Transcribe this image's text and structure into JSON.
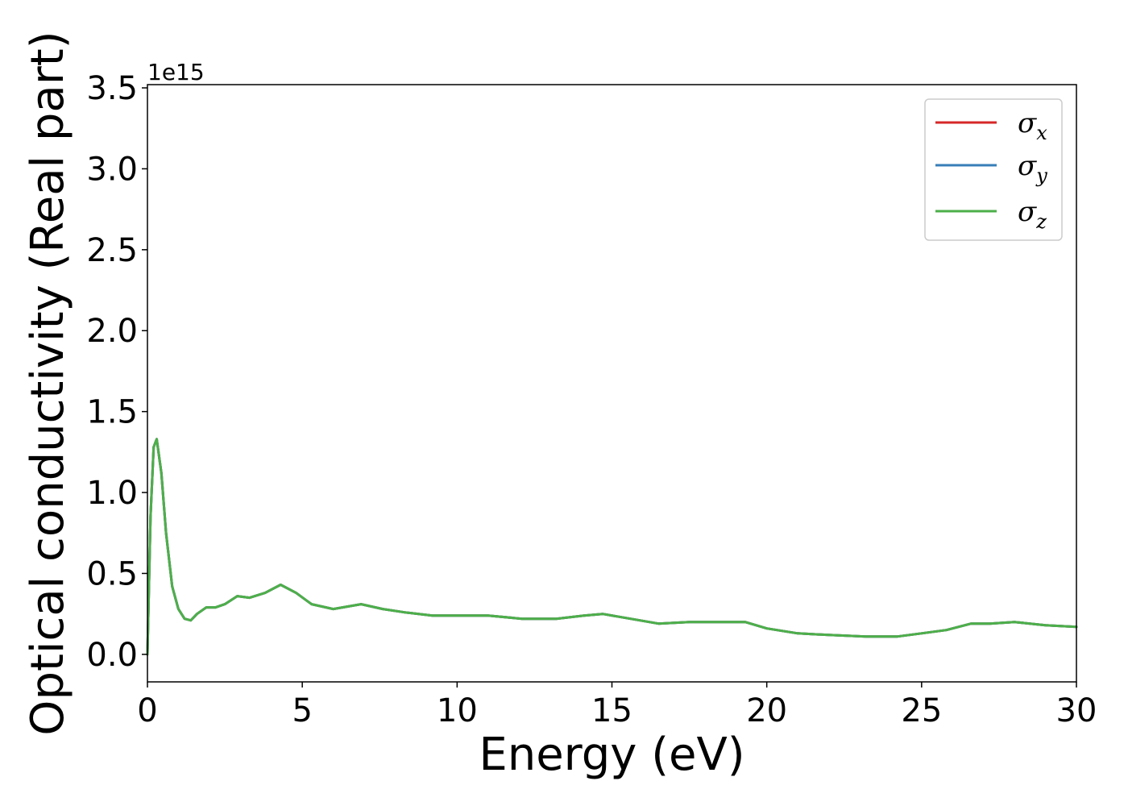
{
  "chart_data": {
    "type": "line",
    "xlabel": "Energy (eV)",
    "ylabel": "Optical conductivity (Real part)",
    "y_offset_label": "1e15",
    "xlim": [
      0,
      30
    ],
    "ylim": [
      -0.17,
      3.52
    ],
    "x_ticks": [
      0,
      5,
      10,
      15,
      20,
      25,
      30
    ],
    "x_tick_labels": [
      "0",
      "5",
      "10",
      "15",
      "20",
      "25",
      "30"
    ],
    "y_ticks": [
      0.0,
      0.5,
      1.0,
      1.5,
      2.0,
      2.5,
      3.0,
      3.5
    ],
    "y_tick_labels": [
      "0.0",
      "0.5",
      "1.0",
      "1.5",
      "2.0",
      "2.5",
      "3.0",
      "3.5"
    ],
    "grid": false,
    "legend_position": "top-right",
    "x": [
      0,
      0.1,
      0.2,
      0.3,
      0.45,
      0.6,
      0.8,
      1.0,
      1.2,
      1.4,
      1.6,
      1.9,
      2.2,
      2.5,
      2.9,
      3.3,
      3.8,
      4.3,
      4.8,
      5.3,
      6.0,
      6.9,
      7.6,
      8.3,
      9.2,
      10.1,
      11.0,
      12.1,
      13.2,
      14.1,
      14.7,
      15.3,
      16.5,
      17.5,
      18.5,
      19.3,
      20.0,
      21.0,
      22.0,
      23.2,
      24.2,
      25.0,
      25.8,
      26.6,
      27.2,
      28.0,
      29.0,
      30.0
    ],
    "series": [
      {
        "name": "σx",
        "color": "#d62728",
        "values": [
          0.0,
          0.85,
          1.28,
          1.33,
          1.12,
          0.75,
          0.42,
          0.28,
          0.22,
          0.21,
          0.25,
          0.29,
          0.29,
          0.31,
          0.36,
          0.35,
          0.38,
          0.43,
          0.38,
          0.31,
          0.28,
          0.31,
          0.28,
          0.26,
          0.24,
          0.24,
          0.24,
          0.22,
          0.22,
          0.24,
          0.25,
          0.23,
          0.19,
          0.2,
          0.2,
          0.2,
          0.16,
          0.13,
          0.12,
          0.11,
          0.11,
          0.13,
          0.15,
          0.19,
          0.19,
          0.2,
          0.18,
          0.17
        ]
      },
      {
        "name": "σy",
        "color": "#377eb8",
        "values": [
          0.0,
          0.85,
          1.28,
          1.33,
          1.12,
          0.75,
          0.42,
          0.28,
          0.22,
          0.21,
          0.25,
          0.29,
          0.29,
          0.31,
          0.36,
          0.35,
          0.38,
          0.43,
          0.38,
          0.31,
          0.28,
          0.31,
          0.28,
          0.26,
          0.24,
          0.24,
          0.24,
          0.22,
          0.22,
          0.24,
          0.25,
          0.23,
          0.19,
          0.2,
          0.2,
          0.2,
          0.16,
          0.13,
          0.12,
          0.11,
          0.11,
          0.13,
          0.15,
          0.19,
          0.19,
          0.2,
          0.18,
          0.17
        ]
      },
      {
        "name": "σz",
        "color": "#4daf4a",
        "values": [
          0.0,
          0.85,
          1.28,
          1.33,
          1.12,
          0.75,
          0.42,
          0.28,
          0.22,
          0.21,
          0.25,
          0.29,
          0.29,
          0.31,
          0.36,
          0.35,
          0.38,
          0.43,
          0.38,
          0.31,
          0.28,
          0.31,
          0.28,
          0.26,
          0.24,
          0.24,
          0.24,
          0.22,
          0.22,
          0.24,
          0.25,
          0.23,
          0.19,
          0.2,
          0.2,
          0.2,
          0.16,
          0.13,
          0.12,
          0.11,
          0.11,
          0.13,
          0.15,
          0.19,
          0.19,
          0.2,
          0.18,
          0.17
        ]
      }
    ],
    "legend": [
      {
        "symbol": "σ",
        "subscript": "x",
        "color": "#d62728"
      },
      {
        "symbol": "σ",
        "subscript": "y",
        "color": "#377eb8"
      },
      {
        "symbol": "σ",
        "subscript": "z",
        "color": "#4daf4a"
      }
    ]
  }
}
